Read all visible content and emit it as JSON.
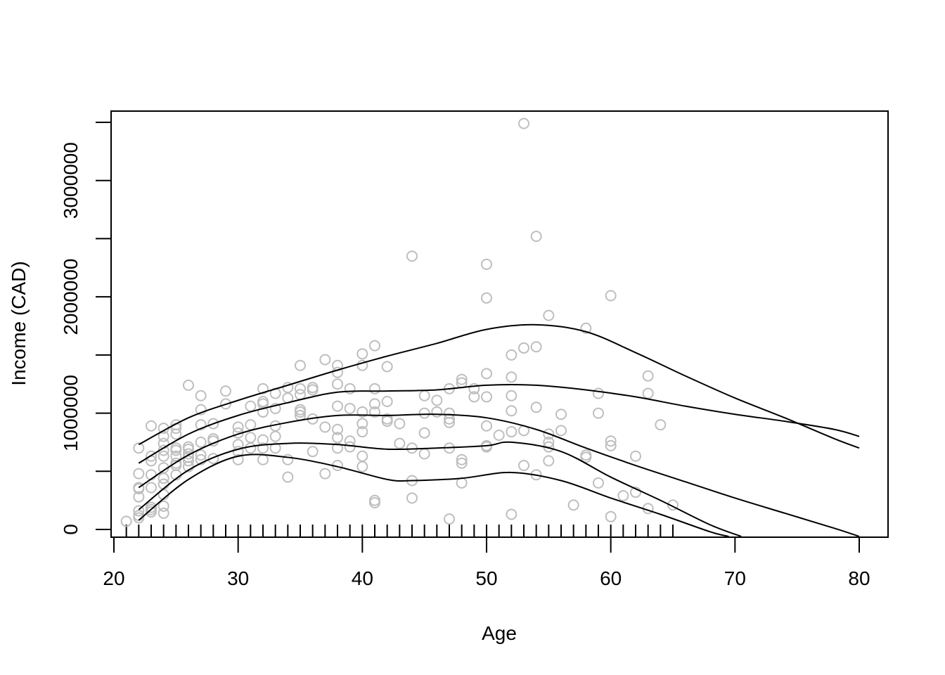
{
  "chart_data": {
    "type": "scatter",
    "title": "",
    "xlabel": "Age",
    "ylabel": "Income (CAD)",
    "xlim": [
      20,
      80
    ],
    "ylim": [
      0,
      3500000
    ],
    "x_ticks": [
      20,
      30,
      40,
      50,
      60,
      70,
      80
    ],
    "y_ticks": [
      0,
      1000000,
      2000000,
      3000000
    ],
    "y_ticks_unlabeled": [
      500000,
      1500000,
      2500000,
      3500000
    ],
    "grid": false,
    "legend": "none",
    "point_color": "#bebebe",
    "line_color": "#000000",
    "rug_x": [
      21,
      22,
      23,
      24,
      25,
      26,
      27,
      28,
      29,
      30,
      31,
      32,
      33,
      34,
      35,
      36,
      37,
      38,
      39,
      40,
      41,
      42,
      43,
      44,
      45,
      46,
      47,
      48,
      49,
      50,
      51,
      52,
      53,
      54,
      55,
      56,
      57,
      58,
      59,
      60,
      61,
      62,
      63,
      64,
      65
    ],
    "points": [
      [
        21,
        70000
      ],
      [
        22,
        100000
      ],
      [
        22,
        120000
      ],
      [
        22,
        160000
      ],
      [
        22,
        280000
      ],
      [
        22,
        350000
      ],
      [
        22,
        360000
      ],
      [
        22,
        480000
      ],
      [
        22,
        700000
      ],
      [
        23,
        150000
      ],
      [
        23,
        170000
      ],
      [
        23,
        190000
      ],
      [
        23,
        360000
      ],
      [
        23,
        470000
      ],
      [
        23,
        590000
      ],
      [
        23,
        630000
      ],
      [
        23,
        890000
      ],
      [
        24,
        140000
      ],
      [
        24,
        200000
      ],
      [
        24,
        300000
      ],
      [
        24,
        390000
      ],
      [
        24,
        440000
      ],
      [
        24,
        530000
      ],
      [
        24,
        630000
      ],
      [
        24,
        680000
      ],
      [
        24,
        740000
      ],
      [
        24,
        800000
      ],
      [
        24,
        870000
      ],
      [
        25,
        470000
      ],
      [
        25,
        550000
      ],
      [
        25,
        570000
      ],
      [
        25,
        630000
      ],
      [
        25,
        680000
      ],
      [
        25,
        700000
      ],
      [
        25,
        820000
      ],
      [
        25,
        870000
      ],
      [
        25,
        900000
      ],
      [
        26,
        540000
      ],
      [
        26,
        590000
      ],
      [
        26,
        620000
      ],
      [
        26,
        650000
      ],
      [
        26,
        690000
      ],
      [
        26,
        710000
      ],
      [
        26,
        1240000
      ],
      [
        27,
        600000
      ],
      [
        27,
        640000
      ],
      [
        27,
        750000
      ],
      [
        27,
        900000
      ],
      [
        27,
        1030000
      ],
      [
        27,
        1150000
      ],
      [
        28,
        610000
      ],
      [
        28,
        760000
      ],
      [
        28,
        780000
      ],
      [
        28,
        910000
      ],
      [
        29,
        1080000
      ],
      [
        29,
        1190000
      ],
      [
        30,
        600000
      ],
      [
        30,
        670000
      ],
      [
        30,
        730000
      ],
      [
        30,
        830000
      ],
      [
        30,
        880000
      ],
      [
        31,
        700000
      ],
      [
        31,
        790000
      ],
      [
        31,
        900000
      ],
      [
        31,
        1060000
      ],
      [
        32,
        600000
      ],
      [
        32,
        700000
      ],
      [
        32,
        770000
      ],
      [
        32,
        1010000
      ],
      [
        32,
        1080000
      ],
      [
        32,
        1100000
      ],
      [
        32,
        1210000
      ],
      [
        33,
        700000
      ],
      [
        33,
        800000
      ],
      [
        33,
        890000
      ],
      [
        33,
        1040000
      ],
      [
        33,
        1170000
      ],
      [
        34,
        450000
      ],
      [
        34,
        600000
      ],
      [
        34,
        1130000
      ],
      [
        34,
        1220000
      ],
      [
        35,
        980000
      ],
      [
        35,
        1010000
      ],
      [
        35,
        1030000
      ],
      [
        35,
        1160000
      ],
      [
        35,
        1210000
      ],
      [
        35,
        1410000
      ],
      [
        36,
        670000
      ],
      [
        36,
        950000
      ],
      [
        36,
        1200000
      ],
      [
        36,
        1220000
      ],
      [
        37,
        480000
      ],
      [
        37,
        880000
      ],
      [
        37,
        1460000
      ],
      [
        38,
        550000
      ],
      [
        38,
        700000
      ],
      [
        38,
        790000
      ],
      [
        38,
        860000
      ],
      [
        38,
        1060000
      ],
      [
        38,
        1250000
      ],
      [
        38,
        1350000
      ],
      [
        38,
        1410000
      ],
      [
        39,
        710000
      ],
      [
        39,
        760000
      ],
      [
        39,
        1040000
      ],
      [
        39,
        1210000
      ],
      [
        40,
        540000
      ],
      [
        40,
        630000
      ],
      [
        40,
        840000
      ],
      [
        40,
        910000
      ],
      [
        40,
        1010000
      ],
      [
        40,
        1410000
      ],
      [
        40,
        1510000
      ],
      [
        41,
        230000
      ],
      [
        41,
        250000
      ],
      [
        41,
        1010000
      ],
      [
        41,
        1080000
      ],
      [
        41,
        1210000
      ],
      [
        41,
        1580000
      ],
      [
        42,
        930000
      ],
      [
        42,
        950000
      ],
      [
        42,
        1100000
      ],
      [
        42,
        1400000
      ],
      [
        43,
        740000
      ],
      [
        43,
        910000
      ],
      [
        44,
        270000
      ],
      [
        44,
        420000
      ],
      [
        44,
        700000
      ],
      [
        44,
        2350000
      ],
      [
        45,
        650000
      ],
      [
        45,
        830000
      ],
      [
        45,
        1000000
      ],
      [
        45,
        1150000
      ],
      [
        46,
        1010000
      ],
      [
        46,
        1110000
      ],
      [
        47,
        90000
      ],
      [
        47,
        700000
      ],
      [
        47,
        920000
      ],
      [
        47,
        950000
      ],
      [
        47,
        1000000
      ],
      [
        47,
        1210000
      ],
      [
        48,
        400000
      ],
      [
        48,
        570000
      ],
      [
        48,
        600000
      ],
      [
        48,
        1260000
      ],
      [
        48,
        1290000
      ],
      [
        49,
        1140000
      ],
      [
        49,
        1210000
      ],
      [
        50,
        710000
      ],
      [
        50,
        720000
      ],
      [
        50,
        890000
      ],
      [
        50,
        1140000
      ],
      [
        50,
        1340000
      ],
      [
        50,
        1990000
      ],
      [
        50,
        2280000
      ],
      [
        51,
        810000
      ],
      [
        52,
        130000
      ],
      [
        52,
        840000
      ],
      [
        52,
        1020000
      ],
      [
        52,
        1150000
      ],
      [
        52,
        1310000
      ],
      [
        52,
        1500000
      ],
      [
        53,
        550000
      ],
      [
        53,
        850000
      ],
      [
        53,
        1560000
      ],
      [
        53,
        3490000
      ],
      [
        54,
        470000
      ],
      [
        54,
        1050000
      ],
      [
        54,
        1570000
      ],
      [
        54,
        2520000
      ],
      [
        55,
        590000
      ],
      [
        55,
        710000
      ],
      [
        55,
        750000
      ],
      [
        55,
        820000
      ],
      [
        55,
        1840000
      ],
      [
        56,
        850000
      ],
      [
        56,
        990000
      ],
      [
        57,
        210000
      ],
      [
        58,
        620000
      ],
      [
        58,
        640000
      ],
      [
        58,
        1730000
      ],
      [
        59,
        400000
      ],
      [
        59,
        1000000
      ],
      [
        59,
        1170000
      ],
      [
        60,
        110000
      ],
      [
        60,
        720000
      ],
      [
        60,
        760000
      ],
      [
        60,
        2010000
      ],
      [
        61,
        290000
      ],
      [
        62,
        320000
      ],
      [
        62,
        630000
      ],
      [
        63,
        180000
      ],
      [
        63,
        1170000
      ],
      [
        63,
        1320000
      ],
      [
        64,
        900000
      ],
      [
        65,
        210000
      ]
    ],
    "curves": [
      {
        "x": [
          22,
          26,
          30,
          34,
          38,
          42,
          46,
          50,
          54,
          58,
          62,
          66,
          70,
          74,
          78,
          80
        ],
        "y": [
          730000,
          960000,
          1110000,
          1240000,
          1370000,
          1490000,
          1600000,
          1720000,
          1760000,
          1700000,
          1520000,
          1320000,
          1130000,
          960000,
          780000,
          700000
        ]
      },
      {
        "x": [
          22,
          26,
          30,
          34,
          38,
          42,
          46,
          50,
          54,
          58,
          62,
          66,
          70,
          74,
          78,
          80
        ],
        "y": [
          570000,
          820000,
          980000,
          1090000,
          1180000,
          1190000,
          1200000,
          1240000,
          1240000,
          1200000,
          1140000,
          1060000,
          990000,
          930000,
          860000,
          800000
        ]
      },
      {
        "x": [
          22,
          26,
          30,
          34,
          38,
          42,
          46,
          50,
          54,
          58,
          62,
          66,
          70,
          74,
          78,
          80
        ],
        "y": [
          360000,
          640000,
          820000,
          920000,
          980000,
          980000,
          990000,
          960000,
          860000,
          700000,
          550000,
          410000,
          270000,
          140000,
          10000,
          -60000
        ]
      },
      {
        "x": [
          22,
          26,
          30,
          34,
          38,
          42,
          46,
          50,
          52,
          56,
          60,
          64,
          68,
          70.5
        ],
        "y": [
          170000,
          510000,
          690000,
          740000,
          730000,
          690000,
          700000,
          720000,
          750000,
          670000,
          450000,
          250000,
          40000,
          -60000
        ]
      },
      {
        "x": [
          22,
          26,
          30,
          34,
          38,
          42,
          44,
          48,
          52,
          56,
          60,
          64,
          68,
          69.5
        ],
        "y": [
          80000,
          430000,
          630000,
          620000,
          540000,
          430000,
          420000,
          440000,
          490000,
          420000,
          270000,
          130000,
          -20000,
          -60000
        ]
      }
    ]
  }
}
